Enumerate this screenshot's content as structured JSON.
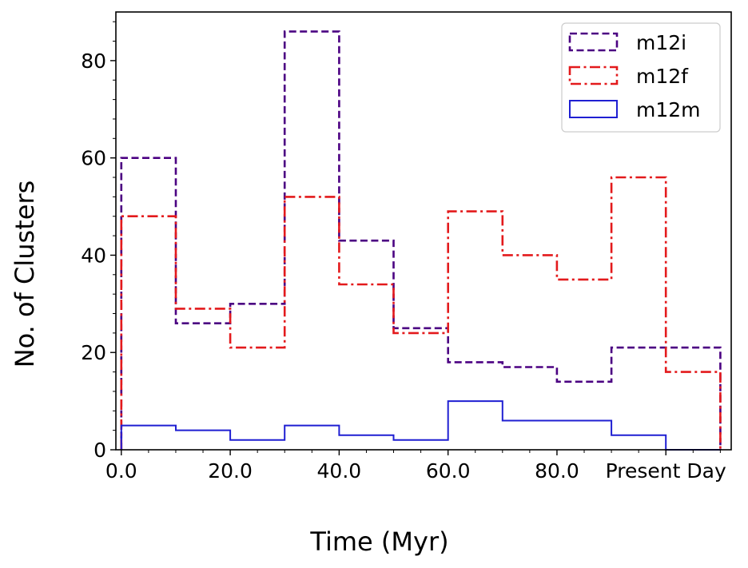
{
  "chart_data": {
    "type": "histogram-step",
    "xlabel": "Time (Myr)",
    "ylabel": "No. of Clusters",
    "bin_edges": [
      0,
      10,
      20,
      30,
      40,
      50,
      60,
      70,
      80,
      90,
      100,
      110
    ],
    "xlim": [
      -1,
      112
    ],
    "ylim": [
      0,
      90
    ],
    "x_ticks": [
      {
        "value": 0,
        "label": "0.0"
      },
      {
        "value": 20,
        "label": "20.0"
      },
      {
        "value": 40,
        "label": "40.0"
      },
      {
        "value": 60,
        "label": "60.0"
      },
      {
        "value": 80,
        "label": "80.0"
      },
      {
        "value": 100,
        "label": "Present Day"
      }
    ],
    "y_ticks": [
      {
        "value": 0,
        "label": "0"
      },
      {
        "value": 20,
        "label": "20"
      },
      {
        "value": 40,
        "label": "40"
      },
      {
        "value": 60,
        "label": "60"
      },
      {
        "value": 80,
        "label": "80"
      }
    ],
    "legend_position": "top-right",
    "series": [
      {
        "name": "m12i",
        "color": "#4b0082",
        "style": "dashed",
        "values": [
          60,
          26,
          30,
          86,
          43,
          25,
          18,
          17,
          14,
          21,
          21
        ]
      },
      {
        "name": "m12f",
        "color": "#e31a1c",
        "style": "dashdot",
        "values": [
          48,
          29,
          21,
          52,
          34,
          24,
          49,
          40,
          35,
          56,
          16
        ]
      },
      {
        "name": "m12m",
        "color": "#1f1fd2",
        "style": "solid",
        "values": [
          5,
          4,
          2,
          5,
          3,
          2,
          10,
          6,
          6,
          3,
          0
        ]
      }
    ]
  }
}
